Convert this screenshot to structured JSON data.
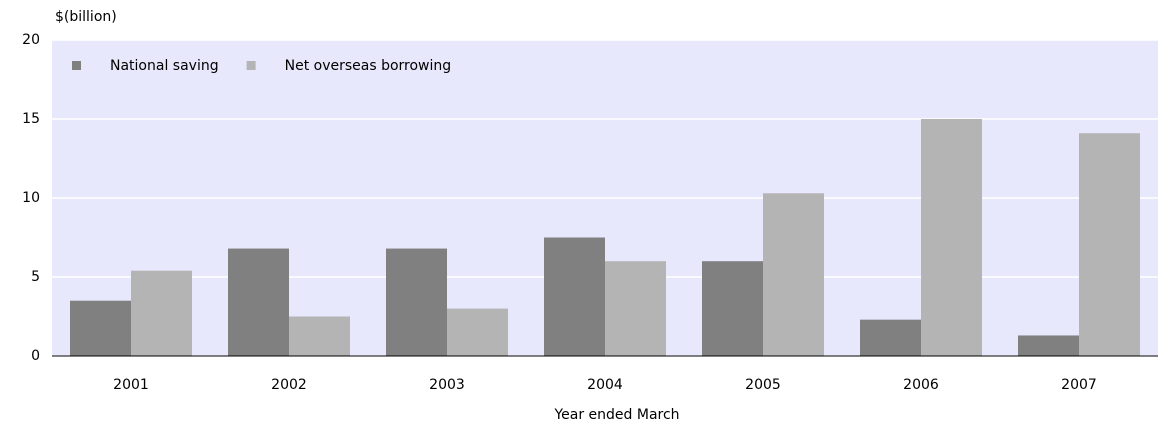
{
  "chart_data": {
    "type": "bar",
    "y_label": "$(billion)",
    "x_label": "Year ended March",
    "categories": [
      "2001",
      "2002",
      "2003",
      "2004",
      "2005",
      "2006",
      "2007"
    ],
    "series": [
      {
        "name": "National saving",
        "color": "#808080",
        "values": [
          3.5,
          6.8,
          6.8,
          7.5,
          6.0,
          2.3,
          1.3
        ]
      },
      {
        "name": "Net overseas borrowing",
        "color": "#b4b4b4",
        "values": [
          5.4,
          2.5,
          3.0,
          6.0,
          10.3,
          15.0,
          14.1
        ]
      }
    ],
    "ylim": [
      0,
      20
    ],
    "yticks": [
      0,
      5,
      10,
      15,
      20
    ],
    "grid": true,
    "legend": "top-left"
  }
}
